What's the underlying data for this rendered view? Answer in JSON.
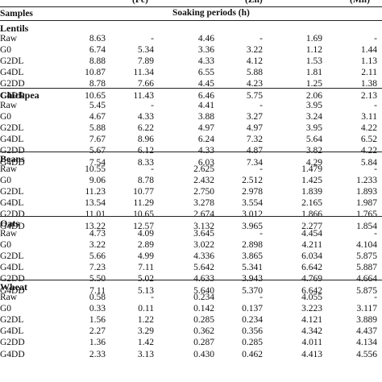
{
  "header": {
    "top_labels": [
      "(Fe)",
      "(Zn)",
      "(Mn)"
    ],
    "samples_label": "Samples",
    "soaking_label": "Soaking periods (h)"
  },
  "sections": [
    {
      "name": "Lentils",
      "rows": [
        {
          "label": "Raw",
          "values": [
            "8.63",
            "-",
            "4.46",
            "-",
            "1.69",
            "-"
          ]
        },
        {
          "label": "G0",
          "values": [
            "6.74",
            "5.34",
            "3.36",
            "3.22",
            "1.12",
            "1.44"
          ]
        },
        {
          "label": "G2DL",
          "values": [
            "8.88",
            "7.89",
            "4.33",
            "4.12",
            "1.53",
            "1.13"
          ]
        },
        {
          "label": "G4DL",
          "values": [
            "10.87",
            "11.34",
            "6.55",
            "5.88",
            "1.81",
            "2.11"
          ]
        },
        {
          "label": "G2DD",
          "values": [
            "8.78",
            "7.66",
            "4.45",
            "4.23",
            "1.25",
            "1.38"
          ]
        },
        {
          "label": "G4DD",
          "values": [
            "10.65",
            "11.43",
            "6.46",
            "5.75",
            "2.06",
            "2.13"
          ]
        }
      ]
    },
    {
      "name": "Chickpea",
      "rows": [
        {
          "label": "Raw",
          "values": [
            "5.45",
            "-",
            "4.41",
            "-",
            "3.95",
            "-"
          ]
        },
        {
          "label": "G0",
          "values": [
            "4.67",
            "4.33",
            "3.88",
            "3.27",
            "3.24",
            "3.11"
          ]
        },
        {
          "label": "G2DL",
          "values": [
            "5.88",
            "6.22",
            "4.97",
            "4.97",
            "3.95",
            "4.22"
          ]
        },
        {
          "label": "G4DL",
          "values": [
            "7.67",
            "8.96",
            "6.24",
            "7.32",
            "5.64",
            "6.52"
          ]
        },
        {
          "label": "G2DD",
          "values": [
            "5.67",
            "6.12",
            "4.33",
            "4.87",
            "3.82",
            "4.22"
          ]
        },
        {
          "label": "G4DD",
          "values": [
            "7.54",
            "8.33",
            "6.03",
            "7.34",
            "4.29",
            "5.84"
          ]
        }
      ]
    },
    {
      "name": "Beans",
      "rows": [
        {
          "label": "Raw",
          "values": [
            "10.55",
            "-",
            "2.625",
            "-",
            "1.479",
            "-"
          ]
        },
        {
          "label": "G0",
          "values": [
            "9.06",
            "8.78",
            "2.432",
            "2.512",
            "1.425",
            "1.233"
          ]
        },
        {
          "label": "G2DL",
          "values": [
            "11.23",
            "10.77",
            "2.750",
            "2.978",
            "1.839",
            "1.893"
          ]
        },
        {
          "label": "G4DL",
          "values": [
            "13.54",
            "11.29",
            "3.278",
            "3.554",
            "2.165",
            "1.987"
          ]
        },
        {
          "label": "G2DD",
          "values": [
            "11.01",
            "10.65",
            "2.674",
            "3.012",
            "1.866",
            "1.765"
          ]
        },
        {
          "label": "G4DD",
          "values": [
            "13.22",
            "12.57",
            "3.132",
            "3.965",
            "2.277",
            "1.854"
          ]
        }
      ]
    },
    {
      "name": "Oats",
      "rows": [
        {
          "label": "Raw",
          "values": [
            "4.73",
            "4.09",
            "3.645",
            "-",
            "4.454",
            "-"
          ]
        },
        {
          "label": "G0",
          "values": [
            "3.22",
            "2.89",
            "3.022",
            "2.898",
            "4.211",
            "4.104"
          ]
        },
        {
          "label": "G2DL",
          "values": [
            "5.66",
            "4.99",
            "4.336",
            "3.865",
            "6.034",
            "5.875"
          ]
        },
        {
          "label": "G4DL",
          "values": [
            "7.23",
            "7.11",
            "5.642",
            "5.341",
            "6.642",
            "5.887"
          ]
        },
        {
          "label": "G2DD",
          "values": [
            "5.50",
            "5.02",
            "4.633",
            "3.943",
            "4.769",
            "4.664"
          ]
        },
        {
          "label": "G4DD",
          "values": [
            "7.11",
            "5.13",
            "5.640",
            "5.370",
            "6.642",
            "5.875"
          ]
        }
      ]
    },
    {
      "name": "Wheat",
      "rows": [
        {
          "label": "Raw",
          "values": [
            "0.58",
            "-",
            "0.234",
            "-",
            "4.055",
            "-"
          ]
        },
        {
          "label": "G0",
          "values": [
            "0.33",
            "0.11",
            "0.142",
            "0.137",
            "3.223",
            "3.117"
          ]
        },
        {
          "label": "G2DL",
          "values": [
            "1.56",
            "1.22",
            "0.285",
            "0.234",
            "4.121",
            "3.889"
          ]
        },
        {
          "label": "G4DL",
          "values": [
            "2.27",
            "3.29",
            "0.362",
            "0.356",
            "4.342",
            "4.437"
          ]
        },
        {
          "label": "G2DD",
          "values": [
            "1.36",
            "1.42",
            "0.287",
            "0.285",
            "4.011",
            "4.134"
          ]
        },
        {
          "label": "G4DD",
          "values": [
            "2.33",
            "3.13",
            "0.430",
            "0.462",
            "4.413",
            "4.556"
          ]
        }
      ]
    }
  ]
}
